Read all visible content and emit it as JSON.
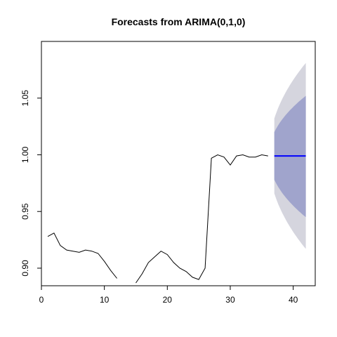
{
  "chart_data": {
    "type": "line",
    "title": "Forecasts from ARIMA(0,1,0)",
    "xlabel": "",
    "ylabel": "",
    "xlim": [
      0,
      43.5
    ],
    "ylim": [
      0.8845,
      1.1
    ],
    "x_ticks": [
      0,
      10,
      20,
      30,
      40
    ],
    "y_ticks": [
      0.9,
      0.95,
      1.0,
      1.05
    ],
    "y_tick_labels": [
      "0.90",
      "0.95",
      "1.00",
      "1.05"
    ],
    "grid": false,
    "series": [
      {
        "x": [
          1,
          2,
          3,
          4,
          5,
          6,
          7,
          8,
          9,
          10,
          11,
          12,
          13,
          14,
          15,
          16,
          17,
          18,
          19,
          20,
          21,
          22,
          23,
          24,
          25,
          26,
          27,
          28,
          29,
          30,
          31,
          32,
          33,
          34,
          35,
          36
        ],
        "y": [
          0.928,
          0.931,
          0.92,
          0.916,
          0.915,
          0.914,
          0.916,
          0.915,
          0.913,
          0.906,
          0.898,
          0.891,
          null,
          null,
          0.887,
          0.895,
          0.905,
          0.91,
          0.915,
          0.912,
          0.905,
          0.9,
          0.897,
          0.892,
          0.89,
          0.9,
          0.997,
          1.0,
          0.998,
          0.991,
          0.999,
          1.0,
          0.998,
          0.998,
          1.0,
          0.999
        ],
        "color": "#000000"
      }
    ],
    "forecast": {
      "x_start": 37,
      "x_end": 42,
      "point": 0.999,
      "lower80_start": 0.978,
      "upper80_start": 1.02,
      "lower80_end": 0.945,
      "upper80_end": 1.052,
      "lower95_start": 0.966,
      "upper95_start": 1.032,
      "lower95_end": 0.917,
      "upper95_end": 1.081,
      "point_color": "#0000ff",
      "band80_color": "#a0a4cc",
      "band95_color": "#d5d5de"
    }
  }
}
